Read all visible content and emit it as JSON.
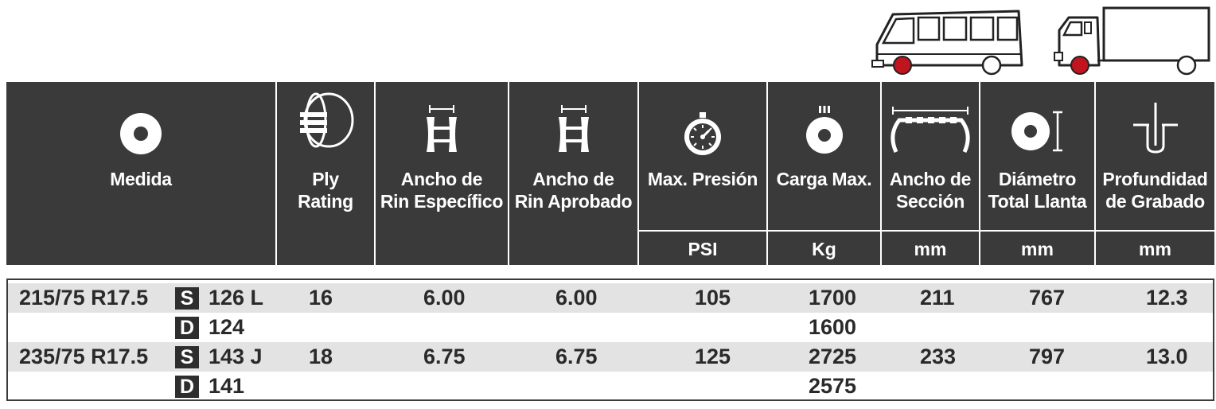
{
  "header": {
    "medida": "Medida",
    "ply_rating": "Ply Rating",
    "rin_especifico": "Ancho de Rin Específico",
    "rin_aprobado": "Ancho de Rin Aprobado",
    "max_presion": "Max. Presión",
    "carga_max": "Carga Max.",
    "ancho_seccion": "Ancho de Sección",
    "diametro_total": "Diámetro Total Llanta",
    "profundidad": "Profundidad de Grabado"
  },
  "units": {
    "presion": "PSI",
    "carga": "Kg",
    "seccion": "mm",
    "diametro": "mm",
    "profundidad": "mm"
  },
  "colors": {
    "header_bg": "#3a3a3a",
    "row_shade": "#e3e3e3",
    "wheel_accent": "#c0141f"
  },
  "icons": [
    "van-icon",
    "truck-icon",
    "tire-front-icon",
    "ply-icon",
    "rim-width-icon",
    "rim-width-icon",
    "pressure-gauge-icon",
    "load-weight-icon",
    "section-width-icon",
    "diameter-icon",
    "tread-depth-icon"
  ],
  "rows": [
    {
      "medida": "215/75 R17.5",
      "service": "S",
      "load_index": "126 L",
      "ply": "16",
      "rin_esp": "6.00",
      "rin_apr": "6.00",
      "presion": "105",
      "carga": "1700",
      "seccion": "211",
      "diametro": "767",
      "profundidad": "12.3"
    },
    {
      "medida": "",
      "service": "D",
      "load_index": "124",
      "ply": "",
      "rin_esp": "",
      "rin_apr": "",
      "presion": "",
      "carga": "1600",
      "seccion": "",
      "diametro": "",
      "profundidad": ""
    },
    {
      "medida": "235/75 R17.5",
      "service": "S",
      "load_index": "143 J",
      "ply": "18",
      "rin_esp": "6.75",
      "rin_apr": "6.75",
      "presion": "125",
      "carga": "2725",
      "seccion": "233",
      "diametro": "797",
      "profundidad": "13.0"
    },
    {
      "medida": "",
      "service": "D",
      "load_index": "141",
      "ply": "",
      "rin_esp": "",
      "rin_apr": "",
      "presion": "",
      "carga": "2575",
      "seccion": "",
      "diametro": "",
      "profundidad": ""
    }
  ]
}
